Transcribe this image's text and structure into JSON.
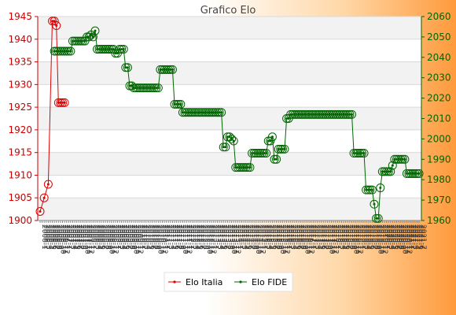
{
  "chart_data": {
    "type": "line",
    "title": "Grafico Elo",
    "grid": true,
    "legend_position": "bottom-center",
    "left_axis": {
      "ylim": [
        1900,
        1945
      ],
      "ticks": [
        1900,
        1905,
        1910,
        1915,
        1920,
        1925,
        1930,
        1935,
        1940,
        1945
      ],
      "color": "#cc0000"
    },
    "right_axis": {
      "ylim": [
        1960,
        2060
      ],
      "ticks": [
        1960,
        1970,
        1980,
        1990,
        2000,
        2010,
        2020,
        2030,
        2040,
        2050,
        2060
      ],
      "color": "#006600"
    },
    "x_count": 187,
    "series": [
      {
        "name": "Elo Italia",
        "axis": "left",
        "color": "#dd0000",
        "points": [
          [
            0,
            1902
          ],
          [
            2,
            1905
          ],
          [
            4,
            1908
          ],
          [
            6,
            1944
          ],
          [
            7,
            1944
          ],
          [
            8,
            1943
          ],
          [
            9,
            1926
          ],
          [
            10,
            1926
          ],
          [
            11,
            1926
          ],
          [
            12,
            1926
          ]
        ]
      },
      {
        "name": "Elo FIDE",
        "axis": "right",
        "color": "#006600",
        "points": [
          [
            7,
            2043
          ],
          [
            8,
            2043
          ],
          [
            9,
            2043
          ],
          [
            10,
            2043
          ],
          [
            11,
            2043
          ],
          [
            12,
            2043
          ],
          [
            13,
            2043
          ],
          [
            14,
            2043
          ],
          [
            15,
            2043
          ],
          [
            16,
            2048
          ],
          [
            17,
            2048
          ],
          [
            18,
            2048
          ],
          [
            19,
            2048
          ],
          [
            20,
            2048
          ],
          [
            21,
            2048
          ],
          [
            22,
            2048
          ],
          [
            23,
            2050
          ],
          [
            24,
            2050
          ],
          [
            25,
            2051
          ],
          [
            26,
            2050
          ],
          [
            27,
            2053
          ],
          [
            28,
            2044
          ],
          [
            29,
            2044
          ],
          [
            30,
            2044
          ],
          [
            31,
            2044
          ],
          [
            32,
            2044
          ],
          [
            33,
            2044
          ],
          [
            34,
            2044
          ],
          [
            35,
            2044
          ],
          [
            36,
            2044
          ],
          [
            37,
            2042
          ],
          [
            38,
            2042
          ],
          [
            39,
            2044
          ],
          [
            40,
            2044
          ],
          [
            41,
            2044
          ],
          [
            42,
            2035
          ],
          [
            43,
            2035
          ],
          [
            44,
            2026
          ],
          [
            45,
            2026
          ],
          [
            46,
            2025
          ],
          [
            47,
            2025
          ],
          [
            48,
            2025
          ],
          [
            49,
            2025
          ],
          [
            50,
            2025
          ],
          [
            51,
            2025
          ],
          [
            52,
            2025
          ],
          [
            53,
            2025
          ],
          [
            54,
            2025
          ],
          [
            55,
            2025
          ],
          [
            56,
            2025
          ],
          [
            57,
            2025
          ],
          [
            58,
            2025
          ],
          [
            59,
            2034
          ],
          [
            60,
            2034
          ],
          [
            61,
            2034
          ],
          [
            62,
            2034
          ],
          [
            63,
            2034
          ],
          [
            64,
            2034
          ],
          [
            65,
            2034
          ],
          [
            66,
            2017
          ],
          [
            67,
            2017
          ],
          [
            68,
            2017
          ],
          [
            69,
            2017
          ],
          [
            70,
            2013
          ],
          [
            71,
            2013
          ],
          [
            72,
            2013
          ],
          [
            73,
            2013
          ],
          [
            74,
            2013
          ],
          [
            75,
            2013
          ],
          [
            76,
            2013
          ],
          [
            77,
            2013
          ],
          [
            78,
            2013
          ],
          [
            79,
            2013
          ],
          [
            80,
            2013
          ],
          [
            81,
            2013
          ],
          [
            82,
            2013
          ],
          [
            83,
            2013
          ],
          [
            84,
            2013
          ],
          [
            85,
            2013
          ],
          [
            86,
            2013
          ],
          [
            87,
            2013
          ],
          [
            88,
            2013
          ],
          [
            89,
            2013
          ],
          [
            90,
            1996
          ],
          [
            91,
            1996
          ],
          [
            92,
            2001
          ],
          [
            93,
            2001
          ],
          [
            94,
            2000
          ],
          [
            95,
            1999
          ],
          [
            96,
            1986
          ],
          [
            97,
            1986
          ],
          [
            98,
            1986
          ],
          [
            99,
            1986
          ],
          [
            100,
            1986
          ],
          [
            101,
            1986
          ],
          [
            102,
            1986
          ],
          [
            103,
            1986
          ],
          [
            104,
            1993
          ],
          [
            105,
            1993
          ],
          [
            106,
            1993
          ],
          [
            107,
            1993
          ],
          [
            108,
            1993
          ],
          [
            109,
            1993
          ],
          [
            110,
            1993
          ],
          [
            111,
            1993
          ],
          [
            112,
            1999
          ],
          [
            113,
            1999
          ],
          [
            114,
            2001
          ],
          [
            115,
            1990
          ],
          [
            116,
            1990
          ],
          [
            117,
            1995
          ],
          [
            118,
            1995
          ],
          [
            119,
            1995
          ],
          [
            120,
            1995
          ],
          [
            121,
            2010
          ],
          [
            122,
            2010
          ],
          [
            123,
            2012
          ],
          [
            124,
            2012
          ],
          [
            125,
            2012
          ],
          [
            126,
            2012
          ],
          [
            127,
            2012
          ],
          [
            128,
            2012
          ],
          [
            129,
            2012
          ],
          [
            130,
            2012
          ],
          [
            131,
            2012
          ],
          [
            132,
            2012
          ],
          [
            133,
            2012
          ],
          [
            134,
            2012
          ],
          [
            135,
            2012
          ],
          [
            136,
            2012
          ],
          [
            137,
            2012
          ],
          [
            138,
            2012
          ],
          [
            139,
            2012
          ],
          [
            140,
            2012
          ],
          [
            141,
            2012
          ],
          [
            142,
            2012
          ],
          [
            143,
            2012
          ],
          [
            144,
            2012
          ],
          [
            145,
            2012
          ],
          [
            146,
            2012
          ],
          [
            147,
            2012
          ],
          [
            148,
            2012
          ],
          [
            149,
            2012
          ],
          [
            150,
            2012
          ],
          [
            151,
            2012
          ],
          [
            152,
            2012
          ],
          [
            153,
            2012
          ],
          [
            154,
            1993
          ],
          [
            155,
            1993
          ],
          [
            156,
            1993
          ],
          [
            157,
            1993
          ],
          [
            158,
            1993
          ],
          [
            159,
            1993
          ],
          [
            160,
            1975
          ],
          [
            161,
            1975
          ],
          [
            162,
            1975
          ],
          [
            163,
            1975
          ],
          [
            164,
            1968
          ],
          [
            165,
            1961
          ],
          [
            166,
            1961
          ],
          [
            167,
            1976
          ],
          [
            168,
            1984
          ],
          [
            169,
            1984
          ],
          [
            170,
            1984
          ],
          [
            171,
            1984
          ],
          [
            172,
            1984
          ],
          [
            173,
            1987
          ],
          [
            174,
            1990
          ],
          [
            175,
            1990
          ],
          [
            176,
            1990
          ],
          [
            177,
            1990
          ],
          [
            178,
            1990
          ],
          [
            179,
            1990
          ],
          [
            180,
            1983
          ],
          [
            181,
            1983
          ],
          [
            182,
            1983
          ],
          [
            183,
            1983
          ],
          [
            184,
            1983
          ],
          [
            185,
            1983
          ],
          [
            186,
            1983
          ]
        ]
      }
    ],
    "x_tick_labels": [
      "2006-1",
      "2006-2",
      "2006-3",
      "2006-4",
      "2006-5",
      "2006-6",
      "2006-7",
      "2006-8",
      "2006-9",
      "2006-10",
      "2006-11",
      "2006-12",
      "2007-1",
      "2007-2",
      "2007-3",
      "2007-4",
      "2007-5",
      "2007-6",
      "2007-7",
      "2007-8",
      "2007-9",
      "2007-10",
      "2007-11",
      "2007-12",
      "2008-1",
      "2008-2",
      "2008-3",
      "2008-4",
      "2008-5",
      "2008-6",
      "2008-7",
      "2008-8",
      "2008-9",
      "2008-10",
      "2008-11",
      "2008-12",
      "2009-1",
      "2009-2",
      "2009-3",
      "2009-4",
      "2009-5",
      "2009-6",
      "2009-7",
      "2009-8",
      "2009-9",
      "2009-10",
      "2009-11",
      "2009-12",
      "2010-1",
      "2010-2",
      "2010-3",
      "2010-4",
      "2010-5",
      "2010-6",
      "2010-7",
      "2010-8",
      "2010-9",
      "2010-10",
      "2010-11",
      "2010-12",
      "2011-1",
      "2011-2",
      "2011-3",
      "2011-4",
      "2011-5",
      "2011-6",
      "2011-7",
      "2011-8",
      "2011-9",
      "2011-10",
      "2011-11",
      "2011-12",
      "2012-1",
      "2012-2",
      "2012-3",
      "2012-4",
      "2012-5",
      "2012-6",
      "2012-7",
      "2012-8",
      "2012-9",
      "2012-10",
      "2012-11",
      "2012-12",
      "2013-1",
      "2013-2",
      "2013-3",
      "2013-4",
      "2013-5",
      "2013-6",
      "2013-7",
      "2013-8",
      "2013-9",
      "2013-10",
      "2013-11",
      "2013-12",
      "2014-1",
      "2014-2",
      "2014-3",
      "2014-4",
      "2014-5",
      "2014-6",
      "2014-7",
      "2014-8",
      "2014-9",
      "2014-10",
      "2014-11",
      "2014-12",
      "2015-1",
      "2015-2",
      "2015-3",
      "2015-4",
      "2015-5",
      "2015-6",
      "2015-7",
      "2015-8",
      "2015-9",
      "2015-10",
      "2015-11",
      "2015-12",
      "2016-1",
      "2016-2",
      "2016-3",
      "2016-4",
      "2016-5",
      "2016-6",
      "2016-7",
      "2016-8",
      "2016-9",
      "2016-10",
      "2016-11",
      "2016-12",
      "2017-1",
      "2017-2",
      "2017-3",
      "2017-4",
      "2017-5",
      "2017-6",
      "2017-7",
      "2017-8",
      "2017-9",
      "2017-10",
      "2017-11",
      "2017-12",
      "2018-1",
      "2018-2",
      "2018-3",
      "2018-4",
      "2018-5",
      "2018-6",
      "2018-7",
      "2018-8",
      "2018-9",
      "2018-10",
      "2018-11",
      "2018-12",
      "2019-1",
      "2019-2",
      "2019-3",
      "2019-4",
      "2019-5",
      "2019-6",
      "2019-7",
      "2019-8",
      "2019-9",
      "2019-10",
      "2019-11",
      "2019-12",
      "2020-1",
      "2020-2",
      "2020-3",
      "2020-4",
      "2020-5",
      "2020-6",
      "2020-7",
      "2020-8",
      "2020-9",
      "2020-10",
      "2020-11",
      "2020-12",
      "2021-1",
      "2021-2",
      "2021-3",
      "2021-4",
      "2021-5",
      "2021-6",
      "2021-7"
    ]
  }
}
